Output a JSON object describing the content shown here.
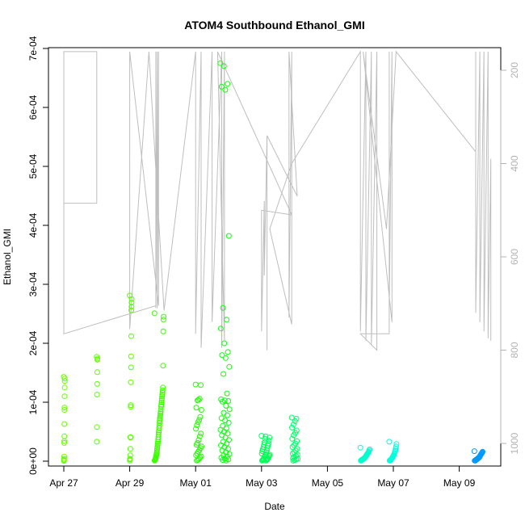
{
  "chart_data": {
    "type": "scatter",
    "title": "ATOM4 Southbound Ethanol_GMI",
    "xlabel": "Date",
    "ylabel": "Ethanol_GMI",
    "x_axis": {
      "unit": "days",
      "range": [
        "2016-04-26 12:00",
        "2016-05-09 24:00"
      ],
      "ticks": [
        {
          "date": "2016-04-27",
          "label": "Apr 27"
        },
        {
          "date": "2016-04-29",
          "label": "Apr 29"
        },
        {
          "date": "2016-05-01",
          "label": "May 01"
        },
        {
          "date": "2016-05-03",
          "label": "May 03"
        },
        {
          "date": "2016-05-05",
          "label": "May 05"
        },
        {
          "date": "2016-05-07",
          "label": "May 07"
        },
        {
          "date": "2016-05-09",
          "label": "May 09"
        }
      ]
    },
    "y_axis": {
      "range": [
        -3e-05,
        0.0007
      ],
      "ticks": [
        {
          "value": 0,
          "label": "0e+00"
        },
        {
          "value": 0.0001,
          "label": "1e-04"
        },
        {
          "value": 0.0002,
          "label": "2e-04"
        },
        {
          "value": 0.0003,
          "label": "3e-04"
        },
        {
          "value": 0.0004,
          "label": "4e-04"
        },
        {
          "value": 0.0005,
          "label": "5e-04"
        },
        {
          "value": 0.0006,
          "label": "6e-04"
        },
        {
          "value": 0.0007,
          "label": "7e-04"
        }
      ]
    },
    "y2_axis": {
      "description": "pressure, reversed",
      "range": [
        1045,
        160
      ],
      "ticks": [
        {
          "value": 200,
          "label": "200"
        },
        {
          "value": 400,
          "label": "400"
        },
        {
          "value": 600,
          "label": "600"
        },
        {
          "value": 800,
          "label": "800"
        },
        {
          "value": 1000,
          "label": "1000"
        }
      ]
    },
    "grid": false,
    "legend": "none",
    "colors": {
      "profile_line": "#bebebe",
      "point_gradient": [
        "#66ff00",
        "#00ff33",
        "#00ffcc",
        "#0099ff"
      ]
    },
    "flight_groups": [
      {
        "date": "2016-04-27",
        "start": "2016-04-27 00:00",
        "spread": 0.03,
        "color": "#66ff00",
        "values": [
          0.000143,
          0.00014,
          0.000136,
          0.000125,
          0.00011,
          9.1e-05,
          8.7e-05,
          6.3e-05,
          4.2e-05,
          3.4e-05,
          3.1e-05,
          8e-06,
          4e-06,
          2e-06,
          1e-06,
          5e-07
        ]
      },
      {
        "date": "2016-04-28",
        "start": "2016-04-28 00:00",
        "spread": 0.02,
        "color": "#5eff00",
        "values": [
          0.000177,
          0.000174,
          0.000172,
          0.000151,
          0.000131,
          0.000113,
          5.8e-05,
          3.3e-05
        ]
      },
      {
        "date": "2016-04-29",
        "start": "2016-04-29 00:00",
        "spread": 0.06,
        "color": "#55ff00",
        "values": [
          0.000281,
          0.000275,
          0.000269,
          0.000262,
          0.000256,
          0.000212,
          0.000178,
          0.000159,
          0.000134,
          9.5e-05,
          9.2e-05,
          4.1e-05,
          4e-05,
          2.1e-05,
          1e-05,
          4e-06,
          3e-06,
          1e-06
        ]
      },
      {
        "date": "2016-04-29b",
        "start": "2016-04-29 18:00",
        "spread": 0.28,
        "color": "#3dff00",
        "values": [
          0.000251,
          0.000245,
          0.00024,
          0.00022,
          0.000162,
          0.000125,
          0.00012,
          0.000116,
          0.000113,
          0.00011,
          0.000106,
          0.000103,
          0.0001,
          9.6e-05,
          9.3e-05,
          8.8e-05,
          8.4e-05,
          8.1e-05,
          7.8e-05,
          7.5e-05,
          7.2e-05,
          6.9e-05,
          6.5e-05,
          6e-05,
          5.6e-05,
          5.2e-05,
          4.9e-05,
          4.5e-05,
          4.1e-05,
          3.7e-05,
          3.3e-05,
          3e-05,
          2.7e-05,
          2.4e-05,
          2.1e-05,
          1.8e-05,
          1.5e-05,
          1.3e-05,
          1.1e-05,
          9e-06,
          7e-06,
          6e-06,
          5e-06,
          4e-06,
          3e-06,
          2e-06,
          2e-06,
          1e-06
        ]
      },
      {
        "date": "2016-05-01",
        "start": "2016-05-01 00:00",
        "spread": 0.18,
        "color": "#22ff00",
        "values": [
          0.00013,
          0.000129,
          0.000106,
          0.000104,
          0.000103,
          9.1e-05,
          8.7e-05,
          7.5e-05,
          7e-05,
          6.6e-05,
          6.1e-05,
          5.5e-05,
          4.7e-05,
          4.2e-05,
          3.6e-05,
          3.1e-05,
          2.8e-05,
          2.5e-05,
          2.2e-05,
          1.9e-05,
          1.6e-05,
          1.3e-05,
          1e-05,
          8e-06,
          6e-06,
          4e-06,
          2e-06,
          1e-06
        ]
      },
      {
        "date": "2016-05-01b",
        "start": "2016-05-01 18:00",
        "spread": 0.28,
        "color": "#0fff10",
        "values": [
          0.000675,
          0.00067,
          0.00064,
          0.000635,
          0.00063,
          0.000382,
          0.00026,
          0.00024,
          0.000225,
          0.0002,
          0.000185,
          0.00018,
          0.000175,
          0.00016,
          0.000148,
          0.000115,
          0.000105,
          0.000103,
          0.000102,
          0.000101,
          9.4e-05,
          8.8e-05,
          8.2e-05,
          7.8e-05,
          7.3e-05,
          6.9e-05,
          6.5e-05,
          6e-05,
          5.6e-05,
          5.3e-05,
          5e-05,
          4.7e-05,
          4.4e-05,
          4e-05,
          3.6e-05,
          3.3e-05,
          3e-05,
          2.7e-05,
          2.4e-05,
          2.1e-05,
          1.8e-05,
          1.5e-05,
          1.2e-05,
          1e-05,
          8e-06,
          6e-06,
          4e-06,
          3e-06,
          2e-06,
          1e-06
        ]
      },
      {
        "date": "2016-05-03",
        "start": "2016-05-03 00:00",
        "spread": 0.25,
        "color": "#00ff55",
        "values": [
          4.3e-05,
          4.2e-05,
          4e-05,
          3.8e-05,
          3.5e-05,
          3.2e-05,
          3e-05,
          2.8e-05,
          2.6e-05,
          2.4e-05,
          2.2e-05,
          2e-05,
          1.8e-05,
          1.7e-05,
          1.5e-05,
          1.3e-05,
          1.2e-05,
          1.1e-05,
          1e-05,
          9e-06,
          8e-06,
          7e-06,
          6e-06,
          5e-06,
          4e-06,
          4e-06,
          3e-06,
          3e-06,
          2e-06,
          2e-06,
          1e-06,
          1e-06
        ]
      },
      {
        "date": "2016-05-03b",
        "start": "2016-05-03 22:00",
        "spread": 0.18,
        "color": "#00ff66",
        "values": [
          7.4e-05,
          7.2e-05,
          6.8e-05,
          6.2e-05,
          5.7e-05,
          5.2e-05,
          4.8e-05,
          4.4e-05,
          3.8e-05,
          3.4e-05,
          3e-05,
          2.7e-05,
          2.4e-05,
          2.1e-05,
          1.8e-05,
          1.5e-05,
          1.3e-05,
          1.1e-05,
          9e-06,
          7e-06,
          5e-06,
          4e-06,
          3e-06,
          2e-06,
          1e-06
        ]
      },
      {
        "date": "2016-05-06",
        "start": "2016-05-06 00:00",
        "spread": 0.28,
        "color": "#00ffcc",
        "values": [
          2.3e-05,
          2e-05,
          1.8e-05,
          1.6e-05,
          1.5e-05,
          1.4e-05,
          1.3e-05,
          1.2e-05,
          1.1e-05,
          1e-05,
          9e-06,
          8e-06,
          7e-06,
          6e-06,
          5e-06,
          5e-06,
          4e-06,
          4e-06,
          3e-06,
          3e-06,
          2e-06,
          2e-06,
          1e-06,
          1e-06
        ]
      },
      {
        "date": "2016-05-06b",
        "start": "2016-05-06 21:00",
        "spread": 0.22,
        "color": "#00ffdd",
        "values": [
          3.3e-05,
          2.9e-05,
          2.5e-05,
          2.1e-05,
          1.8e-05,
          1.6e-05,
          1.4e-05,
          1.2e-05,
          1e-05,
          9e-06,
          8e-06,
          7e-06,
          6e-06,
          5e-06,
          4e-06,
          3e-06,
          2e-06,
          2e-06,
          1e-06,
          1e-06
        ]
      },
      {
        "date": "2016-05-09",
        "start": "2016-05-09 11:00",
        "spread": 0.25,
        "color": "#0099ff",
        "values": [
          1.7e-05,
          1.6e-05,
          1.5e-05,
          1.4e-05,
          1.3e-05,
          1.2e-05,
          1.1e-05,
          1e-05,
          9e-06,
          8e-06,
          7e-06,
          6e-06,
          6e-06,
          5e-06,
          5e-06,
          4e-06,
          4e-06,
          3e-06,
          3e-06,
          2e-06,
          2e-06,
          1e-06,
          1e-06,
          1e-06
        ]
      }
    ],
    "pressure_profile": {
      "series_type": "line",
      "points": [
        [
          "2016-04-27 00:00",
          160
        ],
        [
          "2016-04-27 00:00",
          485
        ],
        [
          "2016-04-28 00:00",
          485
        ],
        [
          "2016-04-28 00:00",
          160
        ],
        [
          "2016-04-27 00:00",
          160
        ],
        [
          "2016-04-27 00:00",
          765
        ],
        [
          "2016-04-29 19:00",
          705
        ],
        [
          "2016-04-29 19:00",
          160
        ],
        [
          "2016-04-29 19:00",
          710
        ],
        [
          "2016-04-29 20:00",
          160
        ],
        [
          "2016-04-29 20:00",
          710
        ],
        [
          "2016-04-29 21:00",
          160
        ],
        [
          "2016-04-29 21:00",
          705
        ],
        [
          "2016-04-29 00:00",
          160
        ],
        [
          "2016-04-29 00:00",
          755
        ],
        [
          "2016-04-29 14:00",
          160
        ],
        [
          "2016-04-30 01:00",
          715
        ],
        [
          "2016-05-01 00:00",
          160
        ],
        [
          "2016-05-01 00:00",
          765
        ],
        [
          "2016-05-01 04:00",
          160
        ],
        [
          "2016-05-01 04:00",
          795
        ],
        [
          "2016-05-01 12:00",
          160
        ],
        [
          "2016-05-01 12:00",
          740
        ],
        [
          "2016-05-01 19:00",
          160
        ],
        [
          "2016-05-01 19:00",
          795
        ],
        [
          "2016-05-01 21:00",
          160
        ],
        [
          "2016-05-01 21:00",
          780
        ],
        [
          "2016-05-01 16:00",
          160
        ],
        [
          "2016-05-03 22:00",
          510
        ],
        [
          "2016-05-03 00:00",
          500
        ],
        [
          "2016-05-03 00:00",
          760
        ],
        [
          "2016-05-03 02:00",
          480
        ],
        [
          "2016-05-03 02:00",
          640
        ],
        [
          "2016-05-03 04:00",
          340
        ],
        [
          "2016-05-03 04:00",
          800
        ],
        [
          "2016-05-03 04:00",
          340
        ],
        [
          "2016-05-04 02:00",
          470
        ],
        [
          "2016-05-03 20:00",
          160
        ],
        [
          "2016-05-03 20:00",
          730
        ],
        [
          "2016-05-03 22:00",
          160
        ],
        [
          "2016-05-03 22:00",
          745
        ],
        [
          "2016-05-03 06:00",
          540
        ],
        [
          "2016-05-03 22:00",
          400
        ],
        [
          "2016-05-06 00:00",
          160
        ],
        [
          "2016-05-06 00:00",
          760
        ],
        [
          "2016-05-06 04:00",
          160
        ],
        [
          "2016-05-06 04:00",
          780
        ],
        [
          "2016-05-06 08:00",
          160
        ],
        [
          "2016-05-06 08:00",
          790
        ],
        [
          "2016-05-06 12:00",
          160
        ],
        [
          "2016-05-06 12:00",
          800
        ],
        [
          "2016-05-06 00:00",
          765
        ],
        [
          "2016-05-06 21:00",
          765
        ],
        [
          "2016-05-06 21:00",
          160
        ],
        [
          "2016-05-06 21:00",
          720
        ],
        [
          "2016-05-06 23:00",
          160
        ],
        [
          "2016-05-06 23:00",
          740
        ],
        [
          "2016-05-06 02:00",
          160
        ],
        [
          "2016-05-06 19:00",
          540
        ],
        [
          "2016-05-07 02:00",
          160
        ],
        [
          "2016-05-09 12:00",
          375
        ],
        [
          "2016-05-09 12:00",
          160
        ],
        [
          "2016-05-09 12:00",
          720
        ],
        [
          "2016-05-09 15:00",
          160
        ],
        [
          "2016-05-09 15:00",
          740
        ],
        [
          "2016-05-09 18:00",
          160
        ],
        [
          "2016-05-09 18:00",
          760
        ],
        [
          "2016-05-09 21:00",
          160
        ],
        [
          "2016-05-09 21:00",
          775
        ],
        [
          "2016-05-09 23:00",
          390
        ],
        [
          "2016-05-09 23:00",
          780
        ]
      ]
    }
  }
}
